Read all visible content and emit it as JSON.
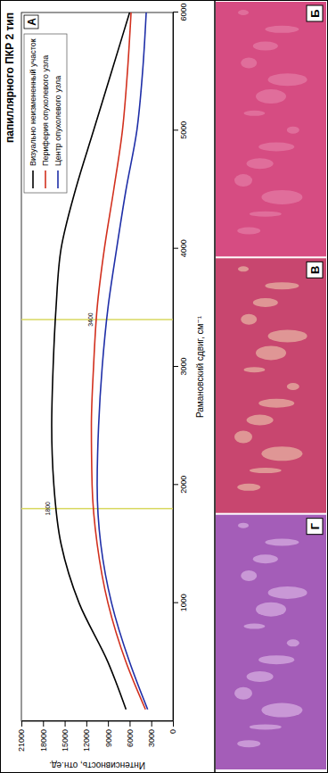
{
  "chart_data": {
    "type": "line",
    "title": "папиллярного ПКР 2 тип",
    "panel_label": "А",
    "x_label": "Рамановский сдвиг, см⁻¹",
    "y_label": "Интенсивность, отн.ед.",
    "xlim": [
      0,
      6000
    ],
    "xticks": [
      1000,
      2000,
      3000,
      4000,
      5000,
      6000
    ],
    "ylim": [
      0,
      21000
    ],
    "yticks": [
      0,
      3000,
      6000,
      9000,
      12000,
      15000,
      18000,
      21000
    ],
    "legend": "upper right",
    "x": [
      100,
      500,
      1000,
      1500,
      2000,
      2500,
      3000,
      3500,
      4000,
      4500,
      5000,
      5500,
      6000
    ],
    "series": [
      {
        "name": "Визуально неизмененный участок",
        "color": "#000000",
        "values": [
          6500,
          9000,
          13000,
          15500,
          16500,
          16800,
          16600,
          16200,
          15500,
          13500,
          11000,
          8500,
          6000
        ]
      },
      {
        "name": "Периферия опухолевого узла",
        "color": "#d2301e",
        "values": [
          3800,
          6500,
          9000,
          10500,
          11200,
          11300,
          11000,
          10500,
          9500,
          8200,
          7000,
          6300,
          5800
        ]
      },
      {
        "name": "Центр опухолевого узла",
        "color": "#1f2fa8",
        "values": [
          3500,
          6000,
          8500,
          10000,
          10500,
          10300,
          9800,
          9000,
          7800,
          6500,
          5000,
          4200,
          3700
        ]
      }
    ],
    "annotations": [
      {
        "x": 1800,
        "y": 16600,
        "text": "1800"
      },
      {
        "x": 3400,
        "y": 10600,
        "text": "3400"
      }
    ]
  },
  "panels": [
    "Б",
    "В",
    "Г"
  ]
}
